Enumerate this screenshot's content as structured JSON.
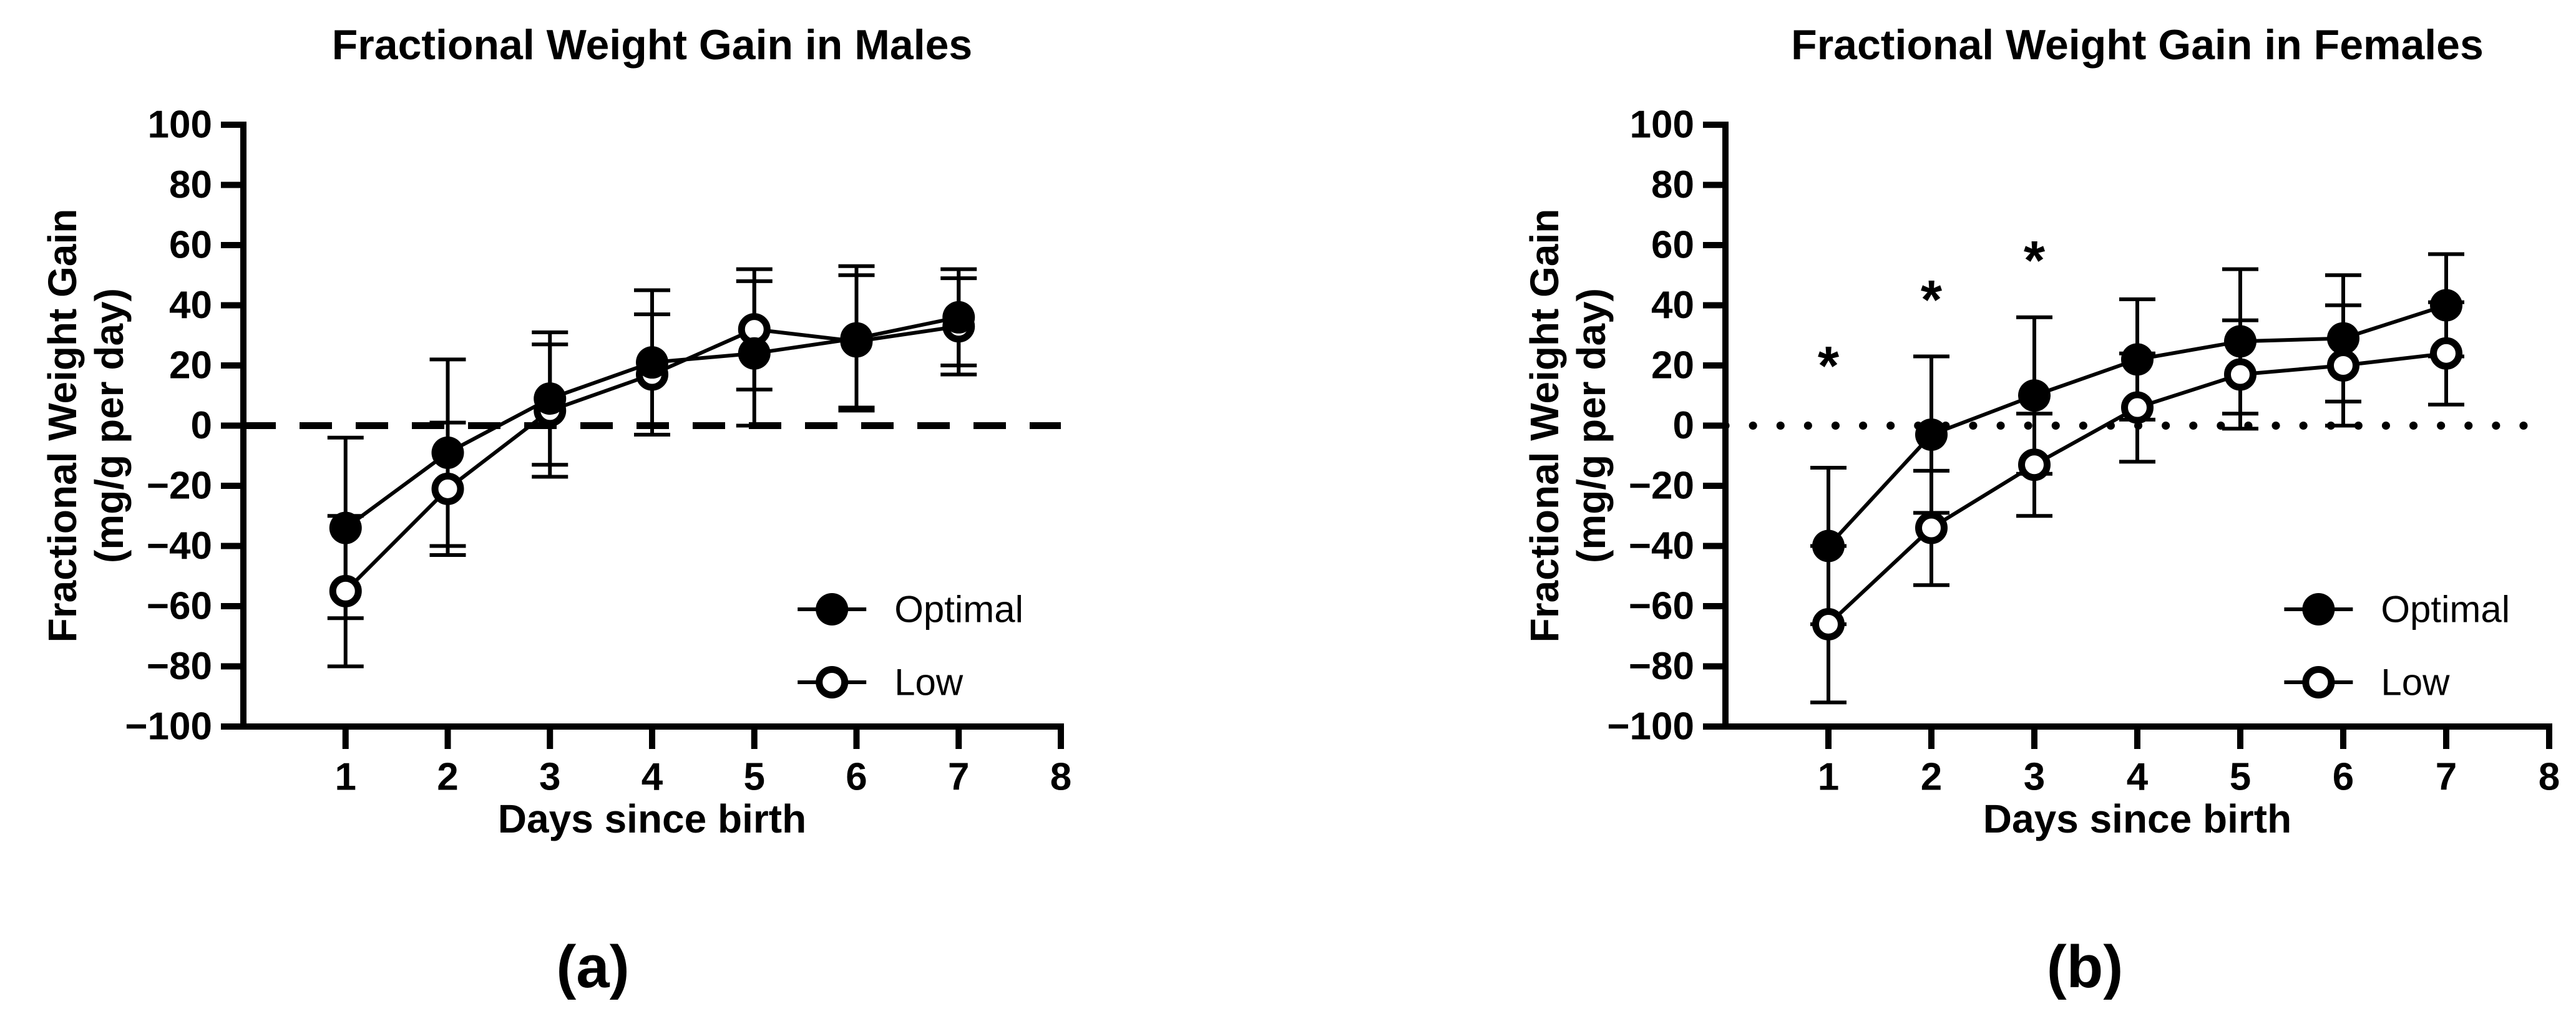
{
  "colors": {
    "foreground": "#000000",
    "background": "#ffffff"
  },
  "chart_data": [
    {
      "type": "line",
      "panel_label": "(a)",
      "title": "Fractional Weight Gain in Males",
      "xlabel": "Days since birth",
      "ylabel_lines": [
        "Fractional Weight Gain",
        "(mg/g per day)"
      ],
      "x": [
        1,
        2,
        3,
        4,
        5,
        6,
        7
      ],
      "xlim": [
        0,
        8
      ],
      "xticks": [
        1,
        2,
        3,
        4,
        5,
        6,
        7,
        8
      ],
      "ylim": [
        -100,
        100
      ],
      "yticks": [
        100,
        80,
        60,
        40,
        20,
        0,
        -20,
        -40,
        -60,
        -80,
        -100
      ],
      "zero_line_style": "dashed",
      "grid": false,
      "legend_position": "inside-lower-right",
      "legend": [
        "Optimal",
        "Low"
      ],
      "series": [
        {
          "name": "Optimal",
          "marker": "filled-circle",
          "values": [
            -34,
            -9,
            9,
            21,
            24,
            29,
            36
          ],
          "errors": [
            30,
            31,
            22,
            24,
            24,
            24,
            16
          ]
        },
        {
          "name": "Low",
          "marker": "open-circle",
          "values": [
            -55,
            -21,
            5,
            17,
            32,
            28,
            33
          ],
          "errors": [
            25,
            22,
            22,
            20,
            20,
            22,
            16
          ]
        }
      ],
      "annotations": []
    },
    {
      "type": "line",
      "panel_label": "(b)",
      "title": "Fractional Weight Gain in Females",
      "xlabel": "Days since birth",
      "ylabel_lines": [
        "Fractional Weight Gain",
        "(mg/g per day)"
      ],
      "x": [
        1,
        2,
        3,
        4,
        5,
        6,
        7
      ],
      "xlim": [
        0,
        8
      ],
      "xticks": [
        1,
        2,
        3,
        4,
        5,
        6,
        7,
        8
      ],
      "ylim": [
        -100,
        100
      ],
      "yticks": [
        100,
        80,
        60,
        40,
        20,
        0,
        -20,
        -40,
        -60,
        -80,
        -100
      ],
      "zero_line_style": "dotted",
      "grid": false,
      "legend_position": "inside-lower-right",
      "legend": [
        "Optimal",
        "Low"
      ],
      "series": [
        {
          "name": "Optimal",
          "marker": "filled-circle",
          "values": [
            -40,
            -3,
            10,
            22,
            28,
            29,
            40
          ],
          "errors": [
            26,
            26,
            26,
            20,
            24,
            21,
            17
          ]
        },
        {
          "name": "Low",
          "marker": "open-circle",
          "values": [
            -66,
            -34,
            -13,
            6,
            17,
            20,
            24
          ],
          "errors": [
            26,
            19,
            17,
            18,
            18,
            20,
            17
          ]
        }
      ],
      "annotations": [
        {
          "text": "*",
          "x": 1,
          "y": 20
        },
        {
          "text": "*",
          "x": 2,
          "y": 42
        },
        {
          "text": "*",
          "x": 3,
          "y": 55
        }
      ]
    }
  ]
}
